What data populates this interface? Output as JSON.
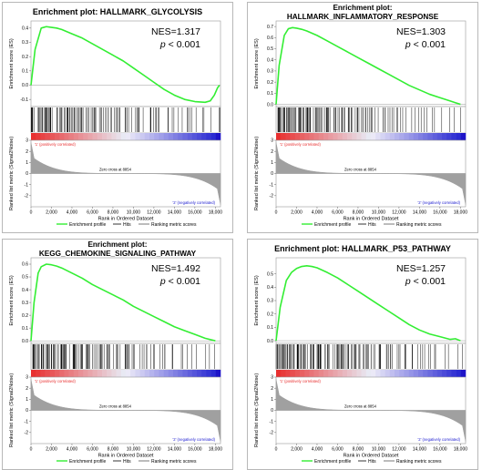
{
  "labels": {
    "es_axis": "Enrichment score (ES)",
    "metric_axis": "Ranked list metric (Signal2Noise)",
    "x_axis": "Rank in Ordered Dataset",
    "pos_corr": "'1' (positively correlated)",
    "neg_corr": "'2' (negatively correlated)",
    "zero_cross": "Zero cross at 8854",
    "legend_profile": "Enrichment profile",
    "legend_hits": "Hits",
    "legend_metric": "Ranking metric scores"
  },
  "colors": {
    "profile": "#33ee33",
    "hits": "#000000",
    "metric": "#a0a0a0",
    "pos": "#e83030",
    "neg": "#2020d0"
  },
  "panels": [
    {
      "title_lines": [
        "Enrichment plot: HALLMARK_GLYCOLYSIS"
      ],
      "nes": "NES=1.317",
      "p_prefix": "p",
      "p_suffix": " < 0.001"
    },
    {
      "title_lines": [
        "Enrichment plot:",
        "HALLMARK_INFLAMMATORY_RESPONSE"
      ],
      "nes": "NES=1.303",
      "p_prefix": "p",
      "p_suffix": " < 0.001"
    },
    {
      "title_lines": [
        "Enrichment plot:",
        "KEGG_CHEMOKINE_SIGNALING_PATHWAY"
      ],
      "nes": "NES=1.492",
      "p_prefix": "p",
      "p_suffix": " < 0.001"
    },
    {
      "title_lines": [
        "Enrichment plot: HALLMARK_P53_PATHWAY"
      ],
      "nes": "NES=1.257",
      "p_prefix": "p",
      "p_suffix": " < 0.001"
    }
  ],
  "chart_data": [
    {
      "type": "line",
      "title": "Enrichment plot: HALLMARK_GLYCOLYSIS",
      "xlabel": "Rank in Ordered Dataset",
      "ylabel": "Enrichment score (ES)",
      "xlim": [
        0,
        18500
      ],
      "ylim": [
        -0.15,
        0.45
      ],
      "x_ticks": [
        "0",
        "2,000",
        "4,000",
        "6,000",
        "8,000",
        "10,000",
        "12,000",
        "14,000",
        "16,000",
        "18,000"
      ],
      "y_ticks": [
        0.4,
        0.3,
        0.2,
        0.1,
        0.0,
        -0.1
      ],
      "y_tick_labels": [
        "0.4",
        "0.3",
        "0.2",
        "0.1",
        "0.0",
        "-0.1"
      ],
      "metric_ylim": [
        -3,
        3
      ],
      "metric_ticks": [
        3,
        2,
        1,
        0,
        -1,
        -2
      ],
      "metric_tick_labels": [
        "3",
        "2",
        "1",
        "0",
        "-1",
        "-2"
      ],
      "series": [
        {
          "x": [
            0,
            400,
            1000,
            1500,
            2000,
            2500,
            3000,
            4000,
            5000,
            6000,
            7000,
            8000,
            9000,
            10000,
            11000,
            12000,
            13000,
            14000,
            15000,
            16000,
            17000,
            17500,
            17900,
            18200,
            18400
          ],
          "values": [
            0.0,
            0.25,
            0.4,
            0.41,
            0.405,
            0.4,
            0.39,
            0.36,
            0.33,
            0.29,
            0.25,
            0.21,
            0.17,
            0.12,
            0.07,
            0.02,
            -0.03,
            -0.07,
            -0.1,
            -0.115,
            -0.12,
            -0.11,
            -0.07,
            -0.02,
            0.0
          ]
        }
      ],
      "hits_density": [
        8,
        9,
        8,
        7,
        7,
        6,
        6,
        6,
        5,
        5,
        5,
        5,
        4,
        4,
        4,
        4,
        3,
        3,
        3,
        3,
        2,
        2,
        2,
        2,
        2,
        2,
        1,
        2,
        1,
        2
      ],
      "metric_start": 2.8,
      "metric_end": -2.8
    },
    {
      "type": "line",
      "title": "Enrichment plot: HALLMARK_INFLAMMATORY_RESPONSE",
      "xlabel": "Rank in Ordered Dataset",
      "ylabel": "Enrichment score (ES)",
      "xlim": [
        0,
        18500
      ],
      "ylim": [
        -0.02,
        0.75
      ],
      "x_ticks": [
        "0",
        "2,000",
        "4,000",
        "6,000",
        "8,000",
        "10,000",
        "12,000",
        "14,000",
        "16,000",
        "18,000"
      ],
      "y_ticks": [
        0.7,
        0.6,
        0.5,
        0.4,
        0.3,
        0.2,
        0.1,
        0.0
      ],
      "y_tick_labels": [
        "0.7",
        "0.6",
        "0.5",
        "0.4",
        "0.3",
        "0.2",
        "0.1",
        "0.0"
      ],
      "metric_ylim": [
        -3,
        3
      ],
      "metric_ticks": [
        3,
        2,
        1,
        0,
        -1,
        -2
      ],
      "metric_tick_labels": [
        "3",
        "2",
        "1",
        "0",
        "-1",
        "-2"
      ],
      "series": [
        {
          "x": [
            0,
            300,
            800,
            1200,
            1600,
            2000,
            2500,
            3000,
            4000,
            5000,
            6000,
            7000,
            8000,
            9000,
            10000,
            11000,
            12000,
            13000,
            14000,
            15000,
            16000,
            17000,
            17500,
            18000
          ],
          "values": [
            0.0,
            0.35,
            0.62,
            0.68,
            0.69,
            0.685,
            0.675,
            0.66,
            0.62,
            0.57,
            0.52,
            0.47,
            0.42,
            0.37,
            0.32,
            0.27,
            0.22,
            0.17,
            0.13,
            0.09,
            0.06,
            0.03,
            0.015,
            0.0
          ]
        }
      ],
      "hits_density": [
        9,
        9,
        8,
        8,
        8,
        7,
        7,
        6,
        6,
        6,
        5,
        5,
        5,
        4,
        4,
        4,
        3,
        3,
        3,
        3,
        2,
        2,
        2,
        2,
        1,
        1,
        1,
        1,
        1,
        1
      ],
      "metric_start": 2.8,
      "metric_end": -2.8
    },
    {
      "type": "line",
      "title": "Enrichment plot: KEGG_CHEMOKINE_SIGNALING_PATHWAY",
      "xlabel": "Rank in Ordered Dataset",
      "ylabel": "Enrichment score (ES)",
      "xlim": [
        0,
        18500
      ],
      "ylim": [
        -0.02,
        0.65
      ],
      "x_ticks": [
        "0",
        "2,000",
        "4,000",
        "6,000",
        "8,000",
        "10,000",
        "12,000",
        "14,000",
        "16,000",
        "18,000"
      ],
      "y_ticks": [
        0.6,
        0.5,
        0.4,
        0.3,
        0.2,
        0.1,
        0.0
      ],
      "y_tick_labels": [
        "0.6",
        "0.5",
        "0.4",
        "0.3",
        "0.2",
        "0.1",
        "0.0"
      ],
      "metric_ylim": [
        -3,
        3
      ],
      "metric_ticks": [
        3,
        2,
        1,
        0,
        -1,
        -2
      ],
      "metric_tick_labels": [
        "3",
        "2",
        "1",
        "0",
        "-1",
        "-2"
      ],
      "series": [
        {
          "x": [
            0,
            300,
            700,
            1000,
            1500,
            2000,
            2500,
            3000,
            4000,
            5000,
            6000,
            7000,
            8000,
            9000,
            10000,
            11000,
            12000,
            13000,
            14000,
            15000,
            16000,
            17000,
            17500,
            18000
          ],
          "values": [
            0.0,
            0.3,
            0.53,
            0.58,
            0.6,
            0.595,
            0.585,
            0.57,
            0.53,
            0.49,
            0.44,
            0.4,
            0.36,
            0.32,
            0.27,
            0.23,
            0.19,
            0.15,
            0.11,
            0.08,
            0.05,
            0.02,
            0.01,
            0.0
          ]
        }
      ],
      "hits_density": [
        9,
        9,
        8,
        8,
        7,
        7,
        7,
        6,
        6,
        5,
        5,
        5,
        5,
        4,
        4,
        4,
        3,
        3,
        3,
        2,
        2,
        2,
        2,
        2,
        1,
        1,
        1,
        1,
        1,
        1
      ],
      "metric_start": 2.8,
      "metric_end": -2.8
    },
    {
      "type": "line",
      "title": "Enrichment plot: HALLMARK_P53_PATHWAY",
      "xlabel": "Rank in Ordered Dataset",
      "ylabel": "Enrichment score (ES)",
      "xlim": [
        0,
        18500
      ],
      "ylim": [
        -0.02,
        0.62
      ],
      "x_ticks": [
        "0",
        "2,000",
        "4,000",
        "6,000",
        "8,000",
        "10,000",
        "12,000",
        "14,000",
        "16,000",
        "18,000"
      ],
      "y_ticks": [
        0.5,
        0.4,
        0.3,
        0.2,
        0.1,
        0.0
      ],
      "y_tick_labels": [
        "0.5",
        "0.4",
        "0.3",
        "0.2",
        "0.1",
        "0.0"
      ],
      "metric_ylim": [
        -3,
        3
      ],
      "metric_ticks": [
        3,
        2,
        1,
        0,
        -1,
        -2
      ],
      "metric_tick_labels": [
        "3",
        "2",
        "1",
        "0",
        "-1",
        "-2"
      ],
      "series": [
        {
          "x": [
            0,
            400,
            1000,
            1500,
            2000,
            2500,
            3000,
            3500,
            4000,
            5000,
            6000,
            7000,
            8000,
            9000,
            10000,
            11000,
            12000,
            13000,
            14000,
            15000,
            16000,
            17000,
            17500,
            18000
          ],
          "values": [
            0.0,
            0.25,
            0.45,
            0.51,
            0.54,
            0.555,
            0.56,
            0.555,
            0.545,
            0.51,
            0.47,
            0.42,
            0.37,
            0.32,
            0.27,
            0.22,
            0.17,
            0.12,
            0.08,
            0.05,
            0.03,
            0.01,
            0.015,
            0.0
          ]
        }
      ],
      "hits_density": [
        9,
        9,
        8,
        8,
        8,
        7,
        7,
        7,
        6,
        6,
        6,
        5,
        5,
        5,
        4,
        4,
        4,
        3,
        3,
        3,
        3,
        2,
        2,
        2,
        2,
        2,
        1,
        1,
        1,
        1
      ],
      "metric_start": 2.8,
      "metric_end": -2.8
    }
  ]
}
